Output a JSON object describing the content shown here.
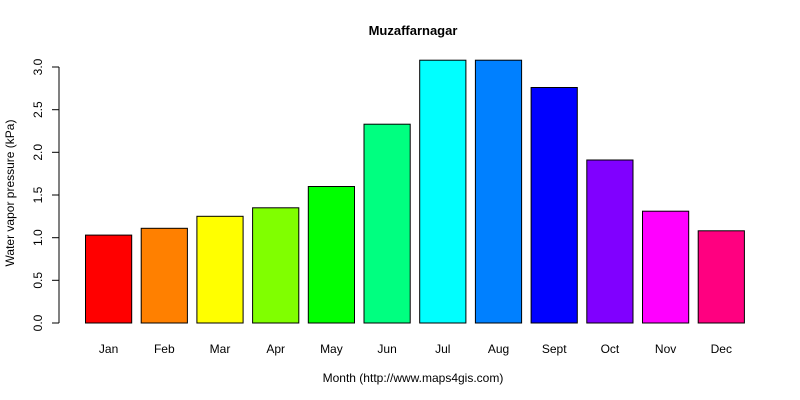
{
  "chart_data": {
    "type": "bar",
    "title": "Muzaffarnagar",
    "xlabel": "Month (http://www.maps4gis.com)",
    "ylabel": "Water vapor pressure (kPa)",
    "categories": [
      "Jan",
      "Feb",
      "Mar",
      "Apr",
      "May",
      "Jun",
      "Jul",
      "Aug",
      "Sept",
      "Oct",
      "Nov",
      "Dec"
    ],
    "values": [
      1.03,
      1.11,
      1.25,
      1.35,
      1.6,
      2.33,
      3.08,
      3.08,
      2.76,
      1.91,
      1.31,
      1.08
    ],
    "colors": [
      "#FF0000",
      "#FF8000",
      "#FFFF00",
      "#80FF00",
      "#00FF00",
      "#00FF80",
      "#00FFFF",
      "#0080FF",
      "#0000FF",
      "#8000FF",
      "#FF00FF",
      "#FF0080"
    ],
    "yticks": [
      0.0,
      0.5,
      1.0,
      1.5,
      2.0,
      2.5,
      3.0
    ],
    "ytick_labels": [
      "0.0",
      "0.5",
      "1.0",
      "1.5",
      "2.0",
      "2.5",
      "3.0"
    ],
    "ylim": [
      0,
      3.0
    ],
    "grid": false,
    "legend": "none"
  }
}
